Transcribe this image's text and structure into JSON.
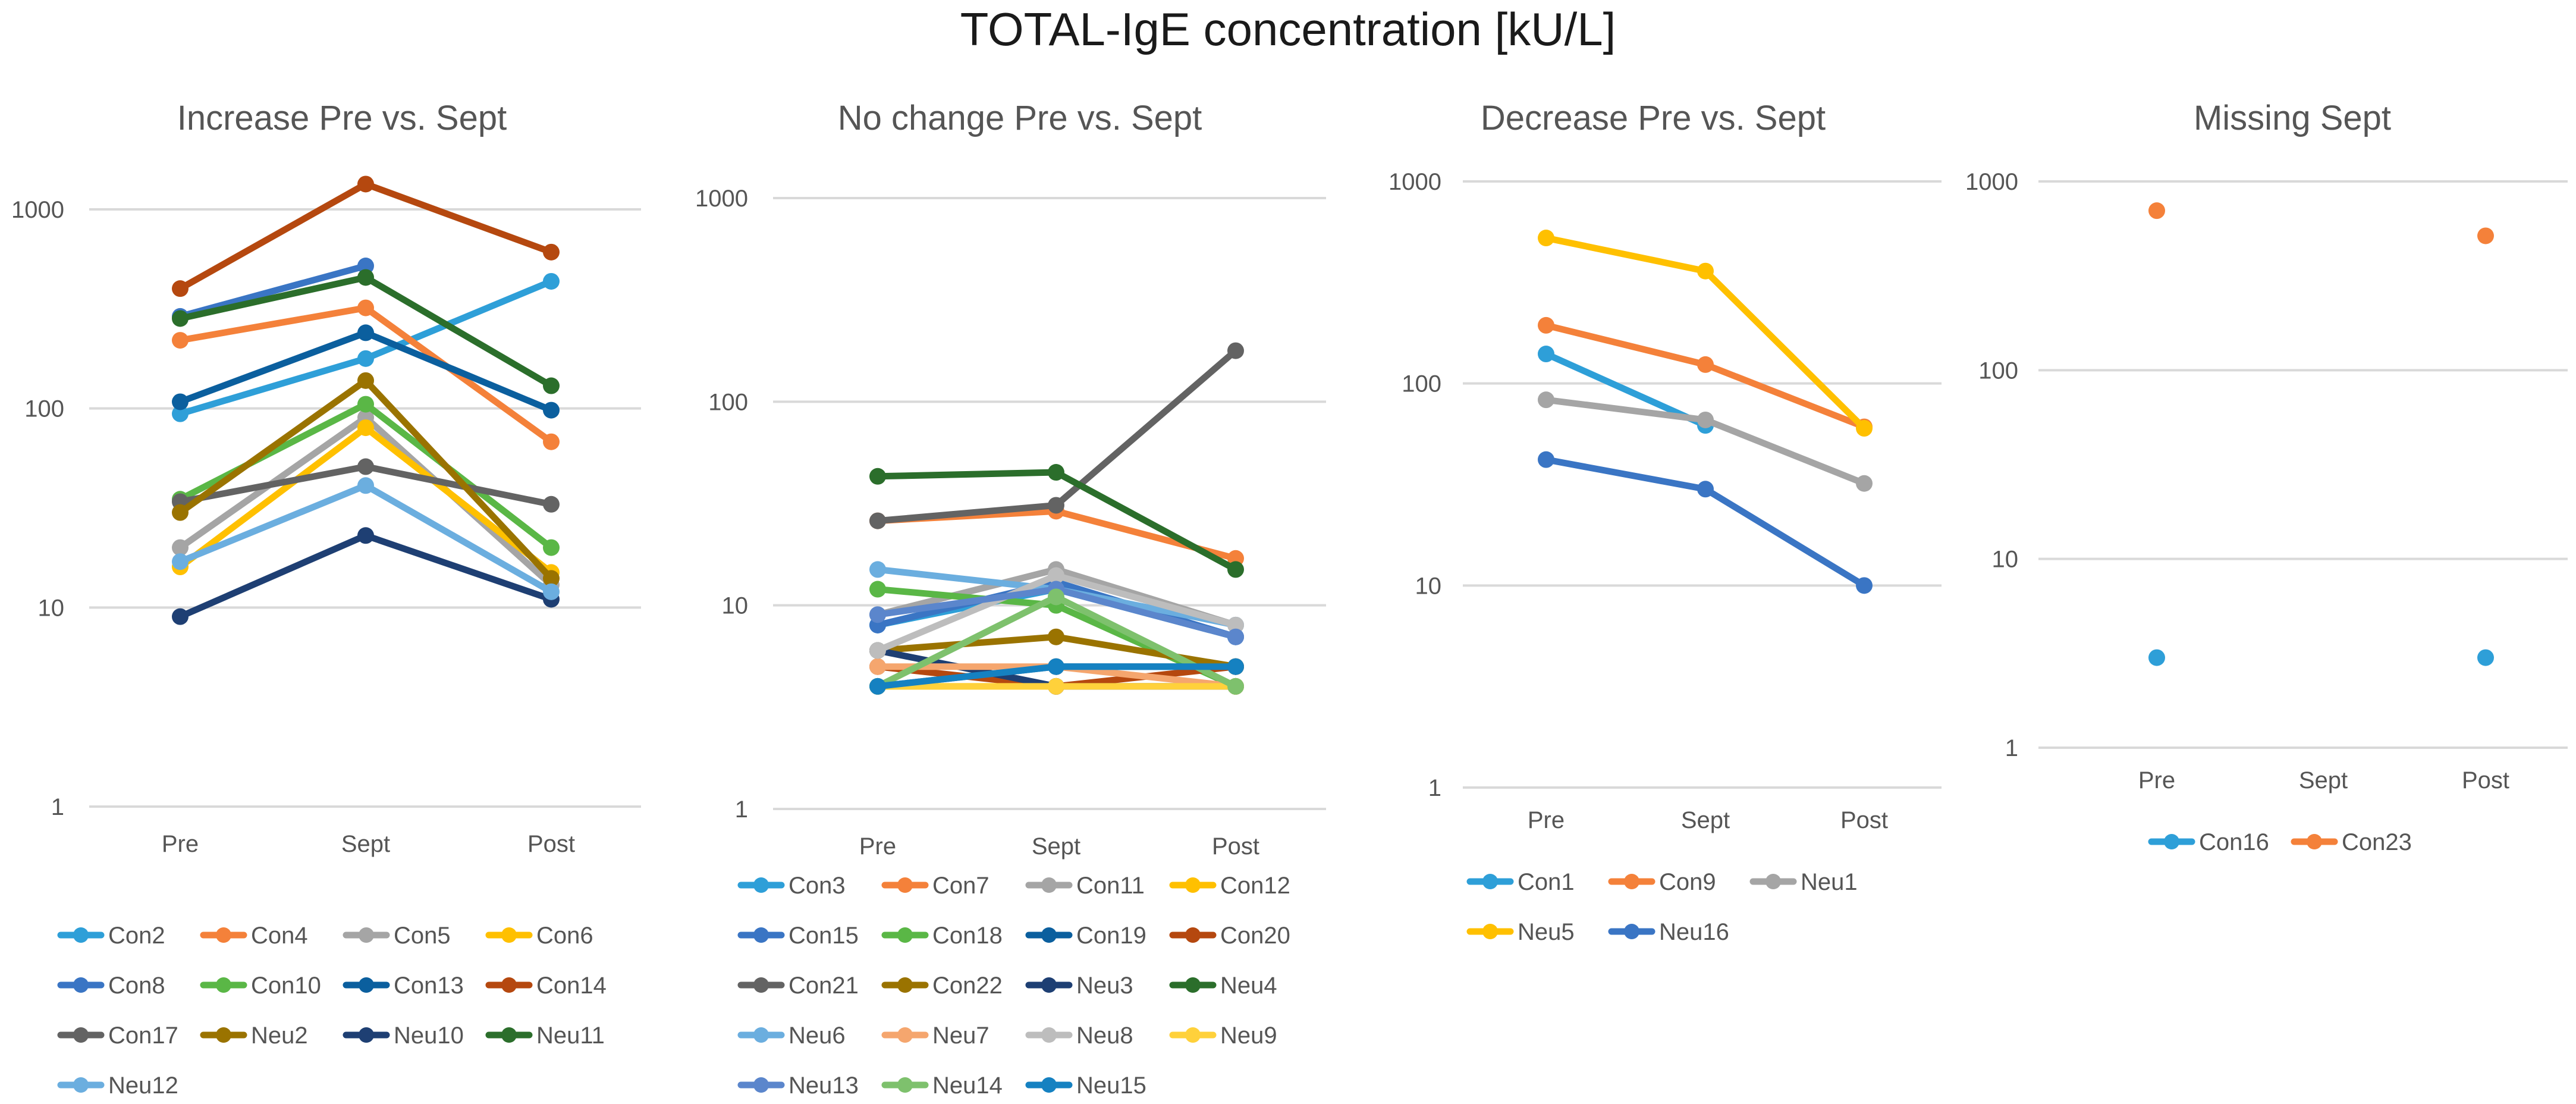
{
  "page": {
    "title": "TOTAL-IgE concentration [kU/L]"
  },
  "chart_data": [
    {
      "type": "line",
      "title": "Increase Pre vs. Sept",
      "scale": "log",
      "categories": [
        "Pre",
        "Sept",
        "Post"
      ],
      "yticks": [
        1,
        10,
        100,
        1000
      ],
      "ylim": [
        1,
        1000
      ],
      "series": [
        {
          "name": "Con2",
          "color": "#2e9fd8",
          "values": [
            94,
            178,
            435
          ]
        },
        {
          "name": "Con4",
          "color": "#f4813a",
          "values": [
            220,
            320,
            68
          ]
        },
        {
          "name": "Con5",
          "color": "#a5a5a5",
          "values": [
            20,
            90,
            13
          ]
        },
        {
          "name": "Con6",
          "color": "#ffc000",
          "values": [
            16,
            80,
            15
          ]
        },
        {
          "name": "Con8",
          "color": "#3a75c4",
          "values": [
            290,
            520,
            null
          ]
        },
        {
          "name": "Con10",
          "color": "#5ab746",
          "values": [
            35,
            105,
            20
          ]
        },
        {
          "name": "Con13",
          "color": "#0b5f9e",
          "values": [
            108,
            240,
            98
          ]
        },
        {
          "name": "Con14",
          "color": "#b5480f",
          "values": [
            400,
            1340,
            610
          ]
        },
        {
          "name": "Con17",
          "color": "#636363",
          "values": [
            34,
            51,
            33
          ]
        },
        {
          "name": "Neu2",
          "color": "#9a7300",
          "values": [
            30,
            138,
            14
          ]
        },
        {
          "name": "Neu10",
          "color": "#1e3f73",
          "values": [
            9,
            23,
            11
          ]
        },
        {
          "name": "Neu11",
          "color": "#2b6e2b",
          "values": [
            283,
            455,
            130
          ]
        },
        {
          "name": "Neu12",
          "color": "#6baedf",
          "values": [
            17,
            41,
            12
          ]
        }
      ]
    },
    {
      "type": "line",
      "title": "No change Pre vs. Sept",
      "scale": "log",
      "categories": [
        "Pre",
        "Sept",
        "Post"
      ],
      "yticks": [
        1,
        10,
        100,
        1000
      ],
      "ylim": [
        1,
        1000
      ],
      "series": [
        {
          "name": "Con3",
          "color": "#2e9fd8",
          "values": [
            8,
            12,
            7
          ]
        },
        {
          "name": "Con7",
          "color": "#f4813a",
          "values": [
            26,
            29,
            17
          ]
        },
        {
          "name": "Con11",
          "color": "#a5a5a5",
          "values": [
            9,
            15,
            8
          ]
        },
        {
          "name": "Con12",
          "color": "#ffc000",
          "values": [
            4,
            4,
            4
          ]
        },
        {
          "name": "Con15",
          "color": "#3a75c4",
          "values": [
            8,
            13,
            7
          ]
        },
        {
          "name": "Con18",
          "color": "#5ab746",
          "values": [
            12,
            10,
            4
          ]
        },
        {
          "name": "Con19",
          "color": "#0b5f9e",
          "values": [
            4,
            5,
            5
          ]
        },
        {
          "name": "Con20",
          "color": "#b5480f",
          "values": [
            5,
            4,
            5
          ]
        },
        {
          "name": "Con21",
          "color": "#636363",
          "values": [
            26,
            31,
            178
          ]
        },
        {
          "name": "Con22",
          "color": "#9a7300",
          "values": [
            6,
            7,
            5
          ]
        },
        {
          "name": "Neu3",
          "color": "#1e3f73",
          "values": [
            6,
            4,
            4
          ]
        },
        {
          "name": "Neu4",
          "color": "#2b6e2b",
          "values": [
            43,
            45,
            15
          ]
        },
        {
          "name": "Neu6",
          "color": "#6baedf",
          "values": [
            15,
            12,
            8
          ]
        },
        {
          "name": "Neu7",
          "color": "#f5a66e",
          "values": [
            5,
            5,
            4
          ]
        },
        {
          "name": "Neu8",
          "color": "#bdbdbd",
          "values": [
            6,
            14,
            8
          ]
        },
        {
          "name": "Neu9",
          "color": "#ffd13b",
          "values": [
            4,
            4,
            4
          ]
        },
        {
          "name": "Neu13",
          "color": "#5b86cc",
          "values": [
            9,
            12,
            7
          ]
        },
        {
          "name": "Neu14",
          "color": "#7ec16d",
          "values": [
            4,
            11,
            4
          ]
        },
        {
          "name": "Neu15",
          "color": "#1581c1",
          "values": [
            4,
            5,
            5
          ]
        }
      ]
    },
    {
      "type": "line",
      "title": "Decrease Pre vs. Sept",
      "scale": "log",
      "categories": [
        "Pre",
        "Sept",
        "Post"
      ],
      "yticks": [
        1,
        10,
        100,
        1000
      ],
      "ylim": [
        1,
        1000
      ],
      "series": [
        {
          "name": "Con1",
          "color": "#2e9fd8",
          "values": [
            140,
            62,
            null
          ]
        },
        {
          "name": "Con9",
          "color": "#f4813a",
          "values": [
            194,
            124,
            61
          ]
        },
        {
          "name": "Neu1",
          "color": "#a5a5a5",
          "values": [
            83,
            66,
            32
          ]
        },
        {
          "name": "Neu5",
          "color": "#ffc000",
          "values": [
            525,
            360,
            60
          ]
        },
        {
          "name": "Neu16",
          "color": "#3a75c4",
          "values": [
            42,
            30,
            10
          ]
        }
      ]
    },
    {
      "type": "scatter",
      "title": "Missing Sept",
      "scale": "log",
      "categories": [
        "Pre",
        "Sept",
        "Post"
      ],
      "yticks": [
        1,
        10,
        100,
        1000
      ],
      "ylim": [
        1,
        1000
      ],
      "series": [
        {
          "name": "Con16",
          "color": "#2e9fd8",
          "values": [
            3,
            null,
            3
          ]
        },
        {
          "name": "Con23",
          "color": "#f4813a",
          "values": [
            700,
            null,
            515
          ]
        }
      ]
    }
  ]
}
